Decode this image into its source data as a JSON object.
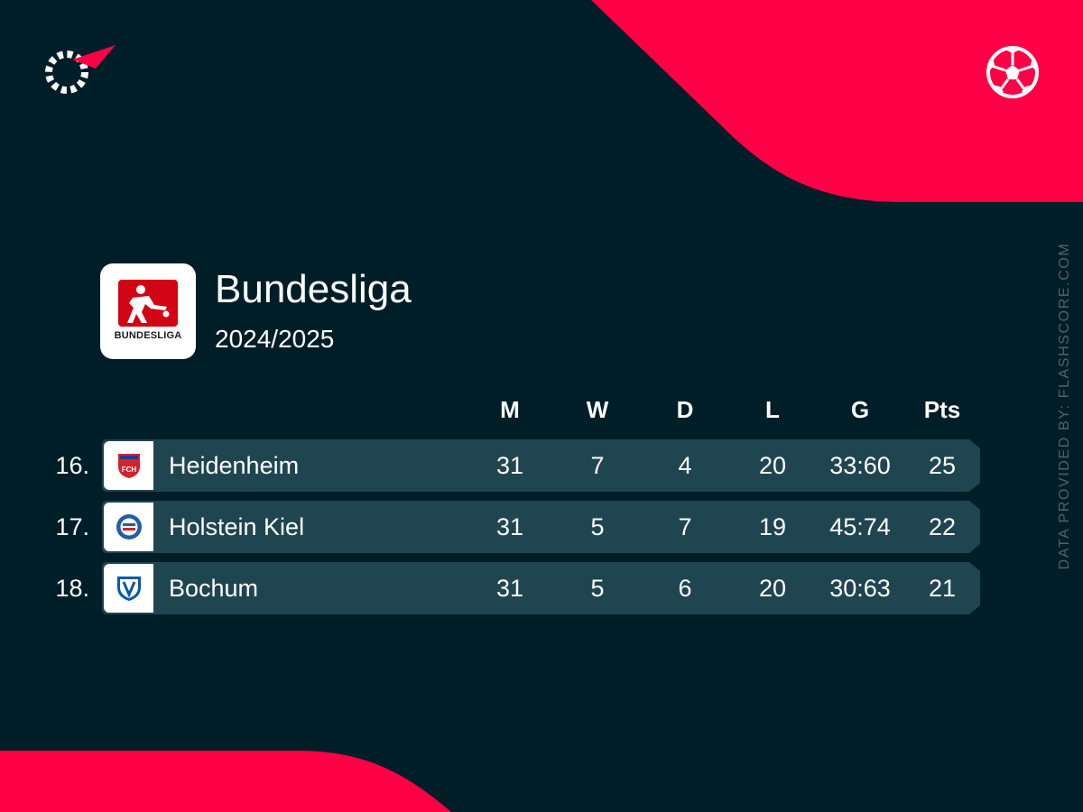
{
  "brand": {
    "logo_icon": "flashscore-logo-icon",
    "sport_icon": "football-icon",
    "accent_color": "#ff0046",
    "background_color": "#001e28",
    "row_color": "#1f4550"
  },
  "league": {
    "name": "Bundesliga",
    "season": "2024/2025",
    "logo_text": "BUNDESLIGA",
    "logo_color": "#d20515"
  },
  "table": {
    "columns": [
      "M",
      "W",
      "D",
      "L",
      "G",
      "Pts"
    ],
    "rows": [
      {
        "rank": "16.",
        "team": "Heidenheim",
        "crest_icon": "heidenheim-crest-icon",
        "crest_text": "FCH",
        "crest_color": "#d2232a",
        "stats": [
          "31",
          "7",
          "4",
          "20",
          "33:60",
          "25"
        ]
      },
      {
        "rank": "17.",
        "team": "Holstein Kiel",
        "crest_icon": "holstein-kiel-crest-icon",
        "crest_color": "#1f5fa8",
        "stats": [
          "31",
          "5",
          "7",
          "19",
          "45:74",
          "22"
        ]
      },
      {
        "rank": "18.",
        "team": "Bochum",
        "crest_icon": "bochum-crest-icon",
        "crest_color": "#005ca9",
        "stats": [
          "31",
          "5",
          "6",
          "20",
          "30:63",
          "21"
        ]
      }
    ]
  },
  "footer": {
    "attribution": "DATA PROVIDED BY: FLASHSCORE.COM"
  }
}
